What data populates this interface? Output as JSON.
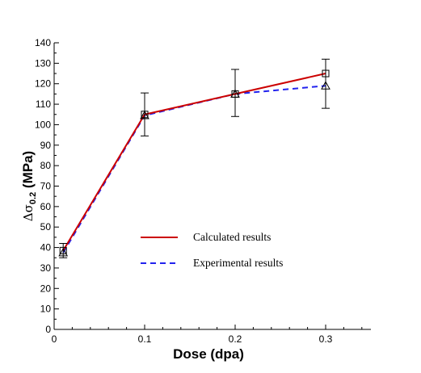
{
  "chart_data": {
    "type": "line",
    "title": "",
    "xlabel": "Dose (dpa)",
    "ylabel": {
      "prefix": "Δσ",
      "subscript": "0.2",
      "suffix": " (MPa)"
    },
    "xlim": [
      0,
      0.35
    ],
    "ylim": [
      0,
      140
    ],
    "xticks": [
      "0",
      "0.1",
      "0.2",
      "0.3"
    ],
    "xtick_values": [
      0,
      0.1,
      0.2,
      0.3
    ],
    "yticks": [
      "0",
      "10",
      "20",
      "30",
      "40",
      "50",
      "60",
      "70",
      "80",
      "90",
      "100",
      "110",
      "120",
      "130",
      "140"
    ],
    "ytick_values": [
      0,
      10,
      20,
      30,
      40,
      50,
      60,
      70,
      80,
      90,
      100,
      110,
      120,
      130,
      140
    ],
    "grid": false,
    "legend_position": "center",
    "x": [
      0.01,
      0.1,
      0.2,
      0.3
    ],
    "series": [
      {
        "name": "Calculated results",
        "color": "#cc0000",
        "line_style": "solid",
        "marker": "square",
        "values": [
          38.5,
          105,
          115,
          125
        ],
        "error_low": [
          35,
          94.5,
          104,
          108
        ],
        "error_high": [
          42,
          115.5,
          127,
          132
        ]
      },
      {
        "name": "Experimental results",
        "color": "#2222ee",
        "line_style": "dashed",
        "marker": "triangle",
        "values": [
          37.5,
          104.5,
          115,
          119
        ]
      }
    ]
  }
}
